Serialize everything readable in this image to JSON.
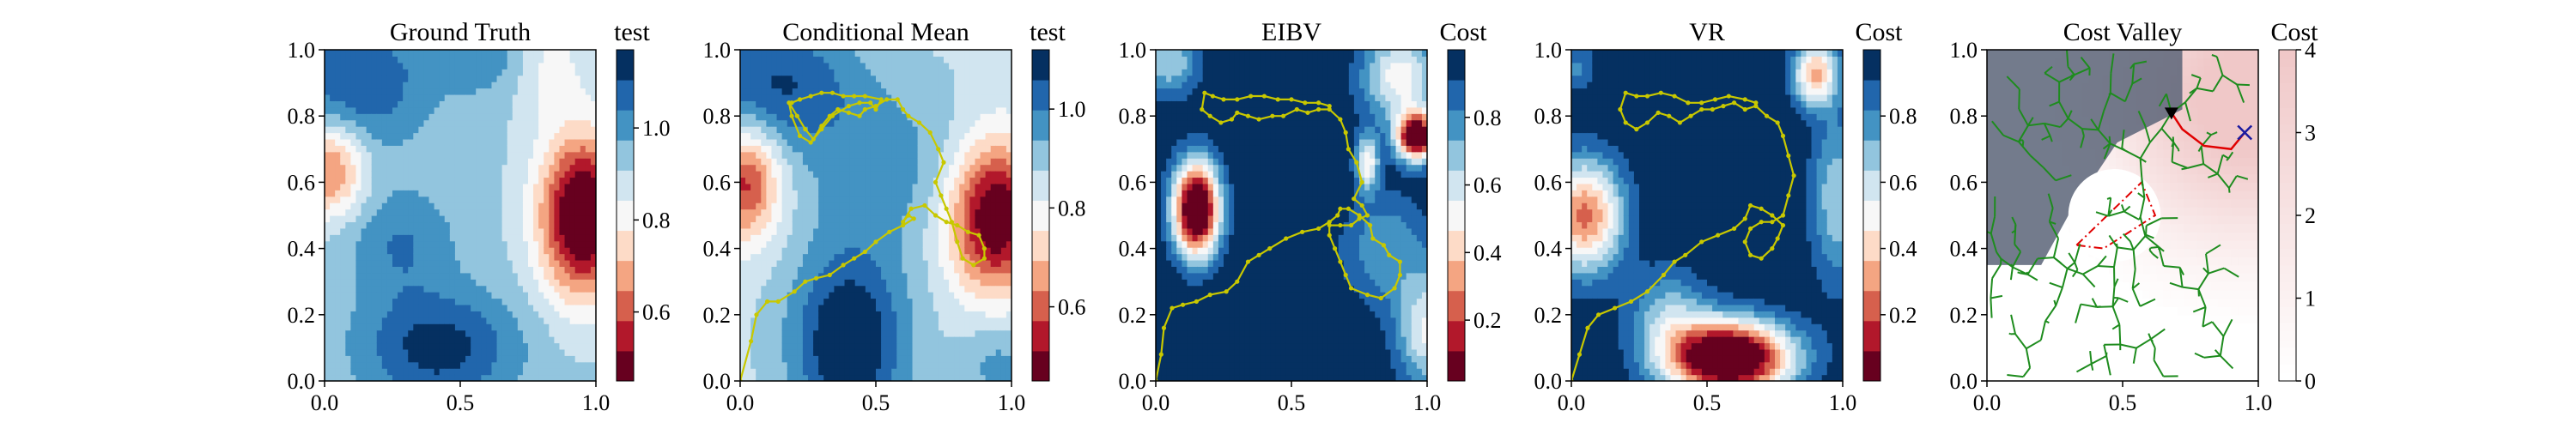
{
  "colors": {
    "rdbu": [
      "#67001f",
      "#b2182b",
      "#d6604d",
      "#f4a582",
      "#fddbc7",
      "#f7f7f7",
      "#d1e5f0",
      "#92c5de",
      "#4393c3",
      "#2166ac",
      "#053061"
    ],
    "path": "#c8c800",
    "tree": "#1e8c1e",
    "obstacle_fill": "#5a6478",
    "cost_high": "#f0c8c8",
    "danger": "#e00000",
    "target_marker": "#1a1aa0",
    "current_marker": "#000000"
  },
  "chart_data": [
    {
      "type": "heatmap",
      "title": "Ground Truth",
      "xlim": [
        0,
        1
      ],
      "ylim": [
        0,
        1
      ],
      "xticks": [
        "0.0",
        "0.5",
        "1.0"
      ],
      "yticks": [
        "0.0",
        "0.2",
        "0.4",
        "0.6",
        "0.8",
        "1.0"
      ],
      "colorbar": {
        "title": "test",
        "range": [
          0.45,
          1.17
        ],
        "ticks": [
          "0.6",
          "0.8",
          "1.0"
        ]
      },
      "field": {
        "base": 0.92,
        "components": [
          {
            "x": 0.95,
            "y": 0.5,
            "sx": 0.11,
            "sy": 0.17,
            "amp": -0.55
          },
          {
            "x": 0.02,
            "y": 0.64,
            "sx": 0.09,
            "sy": 0.1,
            "amp": -0.3
          },
          {
            "x": 0.42,
            "y": 0.1,
            "sx": 0.2,
            "sy": 0.12,
            "amp": 0.22
          },
          {
            "x": 0.12,
            "y": 0.9,
            "sx": 0.18,
            "sy": 0.14,
            "amp": 0.18
          },
          {
            "x": 0.6,
            "y": 0.97,
            "sx": 0.15,
            "sy": 0.08,
            "amp": 0.1
          },
          {
            "x": 0.28,
            "y": 0.42,
            "sx": 0.14,
            "sy": 0.12,
            "amp": 0.12
          },
          {
            "x": 0.82,
            "y": 0.95,
            "sx": 0.1,
            "sy": 0.1,
            "amp": -0.12
          }
        ]
      }
    },
    {
      "type": "heatmap",
      "title": "Conditional Mean",
      "xlim": [
        0,
        1
      ],
      "ylim": [
        0,
        1
      ],
      "xticks": [
        "0.0",
        "0.5",
        "1.0"
      ],
      "yticks": [
        "0.0",
        "0.2",
        "0.4",
        "0.6",
        "0.8",
        "1.0"
      ],
      "colorbar": {
        "title": "test",
        "range": [
          0.45,
          1.12
        ],
        "ticks": [
          "0.6",
          "0.8",
          "1.0"
        ]
      },
      "field": {
        "base": 0.86,
        "components": [
          {
            "x": 0.94,
            "y": 0.5,
            "sx": 0.12,
            "sy": 0.16,
            "amp": -0.45
          },
          {
            "x": 0.02,
            "y": 0.6,
            "sx": 0.09,
            "sy": 0.12,
            "amp": -0.32
          },
          {
            "x": 0.4,
            "y": 0.12,
            "sx": 0.15,
            "sy": 0.2,
            "amp": 0.28
          },
          {
            "x": 0.12,
            "y": 0.9,
            "sx": 0.22,
            "sy": 0.14,
            "amp": 0.2
          },
          {
            "x": 0.55,
            "y": 0.65,
            "sx": 0.25,
            "sy": 0.18,
            "amp": 0.1
          },
          {
            "x": 0.95,
            "y": 0.05,
            "sx": 0.1,
            "sy": 0.1,
            "amp": 0.1
          }
        ]
      },
      "path": [
        [
          0.0,
          0.0
        ],
        [
          0.04,
          0.12
        ],
        [
          0.06,
          0.2
        ],
        [
          0.1,
          0.24
        ],
        [
          0.14,
          0.24
        ],
        [
          0.2,
          0.27
        ],
        [
          0.24,
          0.3
        ],
        [
          0.28,
          0.31
        ],
        [
          0.33,
          0.32
        ],
        [
          0.38,
          0.35
        ],
        [
          0.42,
          0.37
        ],
        [
          0.46,
          0.39
        ],
        [
          0.5,
          0.42
        ],
        [
          0.55,
          0.45
        ],
        [
          0.6,
          0.47
        ],
        [
          0.64,
          0.49
        ],
        [
          0.62,
          0.5
        ],
        [
          0.6,
          0.48
        ],
        [
          0.63,
          0.52
        ],
        [
          0.68,
          0.53
        ],
        [
          0.72,
          0.5
        ],
        [
          0.76,
          0.48
        ],
        [
          0.8,
          0.47
        ],
        [
          0.84,
          0.45
        ],
        [
          0.88,
          0.44
        ],
        [
          0.9,
          0.4
        ],
        [
          0.9,
          0.37
        ],
        [
          0.86,
          0.35
        ],
        [
          0.82,
          0.37
        ],
        [
          0.8,
          0.42
        ],
        [
          0.78,
          0.48
        ],
        [
          0.76,
          0.52
        ],
        [
          0.74,
          0.56
        ],
        [
          0.72,
          0.6
        ],
        [
          0.75,
          0.66
        ],
        [
          0.73,
          0.7
        ],
        [
          0.7,
          0.75
        ],
        [
          0.66,
          0.78
        ],
        [
          0.62,
          0.8
        ],
        [
          0.6,
          0.82
        ],
        [
          0.58,
          0.85
        ],
        [
          0.54,
          0.85
        ],
        [
          0.5,
          0.83
        ],
        [
          0.46,
          0.82
        ],
        [
          0.44,
          0.8
        ],
        [
          0.4,
          0.81
        ],
        [
          0.36,
          0.82
        ],
        [
          0.33,
          0.8
        ],
        [
          0.3,
          0.77
        ],
        [
          0.27,
          0.73
        ],
        [
          0.24,
          0.76
        ],
        [
          0.21,
          0.8
        ],
        [
          0.18,
          0.84
        ],
        [
          0.19,
          0.8
        ],
        [
          0.22,
          0.74
        ],
        [
          0.26,
          0.72
        ],
        [
          0.3,
          0.76
        ],
        [
          0.34,
          0.8
        ],
        [
          0.4,
          0.83
        ],
        [
          0.44,
          0.84
        ],
        [
          0.48,
          0.84
        ],
        [
          0.5,
          0.82
        ],
        [
          0.52,
          0.85
        ],
        [
          0.46,
          0.86
        ],
        [
          0.42,
          0.86
        ],
        [
          0.38,
          0.86
        ],
        [
          0.34,
          0.87
        ],
        [
          0.3,
          0.87
        ],
        [
          0.26,
          0.86
        ],
        [
          0.22,
          0.85
        ],
        [
          0.19,
          0.84
        ]
      ]
    },
    {
      "type": "heatmap",
      "title": "EIBV",
      "xlim": [
        0,
        1
      ],
      "ylim": [
        0,
        1
      ],
      "xticks": [
        "0.0",
        "0.5",
        "1.0"
      ],
      "yticks": [
        "0.0",
        "0.2",
        "0.4",
        "0.6",
        "0.8",
        "1.0"
      ],
      "colorbar": {
        "title": "Cost",
        "range": [
          0.02,
          1.0
        ],
        "ticks": [
          "0.2",
          "0.4",
          "0.6",
          "0.8"
        ]
      },
      "field": {
        "base": 1.0,
        "components": [
          {
            "x": 0.15,
            "y": 0.52,
            "sx": 0.06,
            "sy": 0.1,
            "amp": -1.2
          },
          {
            "x": 0.96,
            "y": 0.74,
            "sx": 0.05,
            "sy": 0.05,
            "amp": -1.1
          },
          {
            "x": 0.78,
            "y": 0.66,
            "sx": 0.03,
            "sy": 0.06,
            "amp": -0.5
          },
          {
            "x": 0.9,
            "y": 0.92,
            "sx": 0.1,
            "sy": 0.1,
            "amp": -0.5
          },
          {
            "x": 0.85,
            "y": 0.4,
            "sx": 0.12,
            "sy": 0.12,
            "amp": -0.25
          },
          {
            "x": 0.05,
            "y": 0.97,
            "sx": 0.08,
            "sy": 0.08,
            "amp": -0.35
          },
          {
            "x": 1.0,
            "y": 0.15,
            "sx": 0.08,
            "sy": 0.12,
            "amp": -0.45
          }
        ]
      },
      "path": [
        [
          0.0,
          0.0
        ],
        [
          0.02,
          0.08
        ],
        [
          0.03,
          0.16
        ],
        [
          0.06,
          0.22
        ],
        [
          0.1,
          0.23
        ],
        [
          0.15,
          0.24
        ],
        [
          0.2,
          0.26
        ],
        [
          0.26,
          0.27
        ],
        [
          0.3,
          0.3
        ],
        [
          0.34,
          0.36
        ],
        [
          0.38,
          0.38
        ],
        [
          0.42,
          0.4
        ],
        [
          0.48,
          0.43
        ],
        [
          0.54,
          0.45
        ],
        [
          0.6,
          0.46
        ],
        [
          0.64,
          0.48
        ],
        [
          0.67,
          0.5
        ],
        [
          0.68,
          0.52
        ],
        [
          0.71,
          0.52
        ],
        [
          0.75,
          0.5
        ],
        [
          0.79,
          0.47
        ],
        [
          0.8,
          0.43
        ],
        [
          0.84,
          0.41
        ],
        [
          0.86,
          0.38
        ],
        [
          0.9,
          0.36
        ],
        [
          0.9,
          0.32
        ],
        [
          0.88,
          0.28
        ],
        [
          0.83,
          0.25
        ],
        [
          0.78,
          0.26
        ],
        [
          0.72,
          0.28
        ],
        [
          0.7,
          0.32
        ],
        [
          0.68,
          0.36
        ],
        [
          0.66,
          0.4
        ],
        [
          0.64,
          0.44
        ],
        [
          0.64,
          0.47
        ],
        [
          0.68,
          0.47
        ],
        [
          0.72,
          0.47
        ],
        [
          0.75,
          0.49
        ],
        [
          0.78,
          0.5
        ],
        [
          0.76,
          0.53
        ],
        [
          0.73,
          0.55
        ],
        [
          0.76,
          0.6
        ],
        [
          0.74,
          0.66
        ],
        [
          0.71,
          0.7
        ],
        [
          0.7,
          0.75
        ],
        [
          0.68,
          0.79
        ],
        [
          0.64,
          0.82
        ],
        [
          0.6,
          0.82
        ],
        [
          0.56,
          0.81
        ],
        [
          0.52,
          0.82
        ],
        [
          0.47,
          0.8
        ],
        [
          0.43,
          0.8
        ],
        [
          0.38,
          0.79
        ],
        [
          0.34,
          0.8
        ],
        [
          0.3,
          0.81
        ],
        [
          0.28,
          0.79
        ],
        [
          0.24,
          0.78
        ],
        [
          0.2,
          0.8
        ],
        [
          0.17,
          0.82
        ],
        [
          0.18,
          0.87
        ],
        [
          0.21,
          0.86
        ],
        [
          0.25,
          0.85
        ],
        [
          0.3,
          0.85
        ],
        [
          0.35,
          0.86
        ],
        [
          0.4,
          0.86
        ],
        [
          0.45,
          0.85
        ],
        [
          0.5,
          0.85
        ],
        [
          0.55,
          0.84
        ],
        [
          0.6,
          0.84
        ],
        [
          0.64,
          0.83
        ]
      ]
    },
    {
      "type": "heatmap",
      "title": "VR",
      "xlim": [
        0,
        1
      ],
      "ylim": [
        0,
        1
      ],
      "xticks": [
        "0.0",
        "0.5",
        "1.0"
      ],
      "yticks": [
        "0.0",
        "0.2",
        "0.4",
        "0.6",
        "0.8",
        "1.0"
      ],
      "colorbar": {
        "title": "Cost",
        "range": [
          0.0,
          1.0
        ],
        "ticks": [
          "0.2",
          "0.4",
          "0.6",
          "0.8"
        ]
      },
      "field": {
        "base": 1.0,
        "components": [
          {
            "x": 0.58,
            "y": 0.07,
            "sx": 0.16,
            "sy": 0.08,
            "amp": -1.25
          },
          {
            "x": 0.05,
            "y": 0.5,
            "sx": 0.1,
            "sy": 0.12,
            "amp": -0.75
          },
          {
            "x": 0.9,
            "y": 0.93,
            "sx": 0.06,
            "sy": 0.07,
            "amp": -0.65
          },
          {
            "x": 0.36,
            "y": 0.2,
            "sx": 0.1,
            "sy": 0.1,
            "amp": -0.3
          },
          {
            "x": 0.98,
            "y": 0.55,
            "sx": 0.07,
            "sy": 0.18,
            "amp": -0.35
          },
          {
            "x": 0.65,
            "y": 0.6,
            "sx": 0.15,
            "sy": 0.2,
            "amp": 0.0
          },
          {
            "x": 0.02,
            "y": 0.95,
            "sx": 0.05,
            "sy": 0.05,
            "amp": -0.2
          }
        ]
      },
      "path": [
        [
          0.0,
          0.0
        ],
        [
          0.03,
          0.08
        ],
        [
          0.06,
          0.16
        ],
        [
          0.1,
          0.2
        ],
        [
          0.16,
          0.22
        ],
        [
          0.22,
          0.24
        ],
        [
          0.28,
          0.27
        ],
        [
          0.34,
          0.32
        ],
        [
          0.38,
          0.36
        ],
        [
          0.42,
          0.38
        ],
        [
          0.48,
          0.42
        ],
        [
          0.54,
          0.44
        ],
        [
          0.6,
          0.46
        ],
        [
          0.64,
          0.49
        ],
        [
          0.66,
          0.53
        ],
        [
          0.7,
          0.52
        ],
        [
          0.74,
          0.5
        ],
        [
          0.78,
          0.47
        ],
        [
          0.76,
          0.43
        ],
        [
          0.74,
          0.4
        ],
        [
          0.7,
          0.37
        ],
        [
          0.66,
          0.38
        ],
        [
          0.64,
          0.42
        ],
        [
          0.66,
          0.46
        ],
        [
          0.7,
          0.48
        ],
        [
          0.74,
          0.48
        ],
        [
          0.78,
          0.5
        ],
        [
          0.8,
          0.56
        ],
        [
          0.82,
          0.62
        ],
        [
          0.8,
          0.68
        ],
        [
          0.78,
          0.74
        ],
        [
          0.76,
          0.78
        ],
        [
          0.72,
          0.8
        ],
        [
          0.68,
          0.83
        ],
        [
          0.64,
          0.82
        ],
        [
          0.6,
          0.84
        ],
        [
          0.56,
          0.83
        ],
        [
          0.52,
          0.82
        ],
        [
          0.48,
          0.82
        ],
        [
          0.44,
          0.8
        ],
        [
          0.4,
          0.78
        ],
        [
          0.36,
          0.8
        ],
        [
          0.32,
          0.81
        ],
        [
          0.28,
          0.78
        ],
        [
          0.24,
          0.76
        ],
        [
          0.2,
          0.78
        ],
        [
          0.18,
          0.82
        ],
        [
          0.2,
          0.87
        ],
        [
          0.24,
          0.86
        ],
        [
          0.28,
          0.86
        ],
        [
          0.33,
          0.87
        ],
        [
          0.38,
          0.86
        ],
        [
          0.43,
          0.84
        ],
        [
          0.48,
          0.84
        ],
        [
          0.53,
          0.85
        ],
        [
          0.58,
          0.86
        ],
        [
          0.64,
          0.85
        ],
        [
          0.68,
          0.84
        ]
      ]
    },
    {
      "type": "heatmap",
      "title": "Cost Valley",
      "xlim": [
        0,
        1
      ],
      "ylim": [
        0,
        1
      ],
      "xticks": [
        "0.0",
        "0.5",
        "1.0"
      ],
      "yticks": [
        "0.0",
        "0.2",
        "0.4",
        "0.6",
        "0.8",
        "1.0"
      ],
      "colorbar": {
        "title": "Cost",
        "range": [
          0,
          4
        ],
        "ticks": [
          "0",
          "1",
          "2",
          "3",
          "4"
        ]
      },
      "obstacle_polygon": [
        [
          0.0,
          1.0
        ],
        [
          0.72,
          1.0
        ],
        [
          0.72,
          0.82
        ],
        [
          0.48,
          0.72
        ],
        [
          0.3,
          0.5
        ],
        [
          0.2,
          0.35
        ],
        [
          0.0,
          0.35
        ]
      ],
      "danger_polygon": [
        [
          0.33,
          0.41
        ],
        [
          0.57,
          0.6
        ],
        [
          0.62,
          0.5
        ],
        [
          0.43,
          0.4
        ]
      ],
      "current_point": [
        0.68,
        0.81
      ],
      "target_point": [
        0.95,
        0.75
      ],
      "planned_route": [
        [
          0.68,
          0.81
        ],
        [
          0.72,
          0.76
        ],
        [
          0.8,
          0.71
        ],
        [
          0.9,
          0.7
        ],
        [
          0.95,
          0.75
        ]
      ]
    }
  ]
}
